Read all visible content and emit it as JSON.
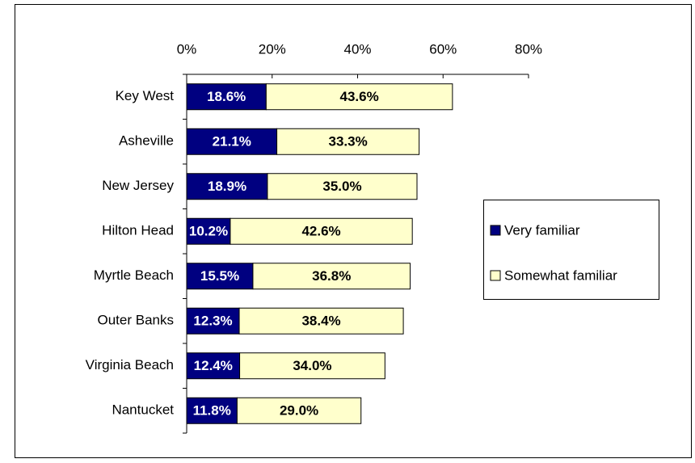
{
  "chart_data": {
    "type": "bar",
    "orientation": "horizontal",
    "stacked": true,
    "categories": [
      "Key West",
      "Asheville",
      "New Jersey",
      "Hilton Head",
      "Myrtle Beach",
      "Outer Banks",
      "Virginia Beach",
      "Nantucket"
    ],
    "series": [
      {
        "name": "Very familiar",
        "color": "#000080",
        "label_color": "#ffffff",
        "values": [
          18.6,
          21.1,
          18.9,
          10.2,
          15.5,
          12.3,
          12.4,
          11.8
        ],
        "value_labels": [
          "18.6%",
          "21.1%",
          "18.9%",
          "10.2%",
          "15.5%",
          "12.3%",
          "12.4%",
          "11.8%"
        ]
      },
      {
        "name": "Somewhat familiar",
        "color": "#ffffcc",
        "label_color": "#000000",
        "values": [
          43.6,
          33.3,
          35.0,
          42.6,
          36.8,
          38.4,
          34.0,
          29.0
        ],
        "value_labels": [
          "43.6%",
          "33.3%",
          "35.0%",
          "42.6%",
          "36.8%",
          "38.4%",
          "34.0%",
          "29.0%"
        ]
      }
    ],
    "xlim": [
      0,
      80
    ],
    "xticks": [
      {
        "value": 0,
        "label": "0%"
      },
      {
        "value": 20,
        "label": "20%"
      },
      {
        "value": 40,
        "label": "40%"
      },
      {
        "value": 60,
        "label": "60%"
      },
      {
        "value": 80,
        "label": "80%"
      }
    ],
    "grid": false,
    "legend": "right"
  }
}
